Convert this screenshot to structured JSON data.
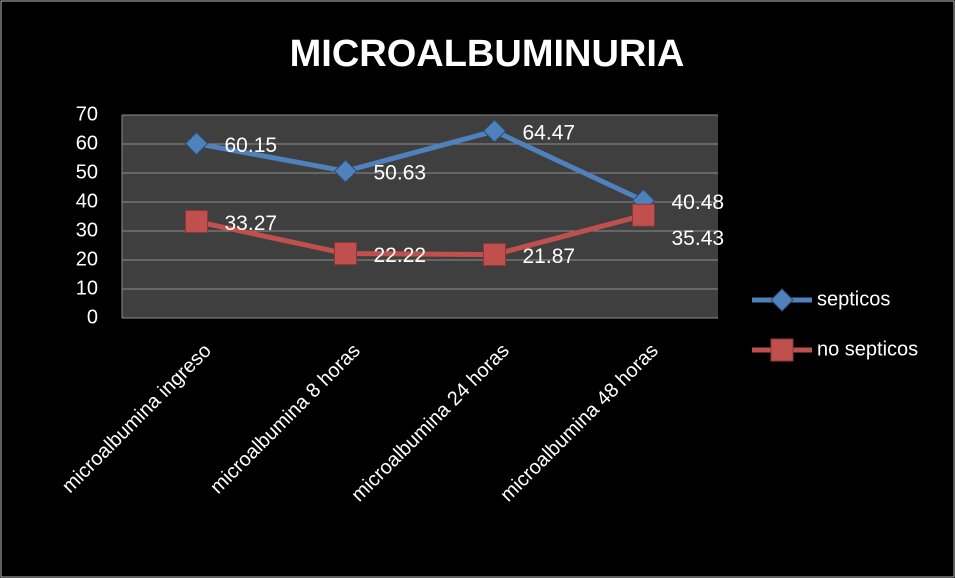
{
  "chart_data": {
    "type": "line",
    "title": "MICROALBUMINURIA",
    "categories": [
      "microalbumina ingreso",
      "microalbumina 8 horas",
      "microalbumina 24 horas",
      "microalbumina 48 horas"
    ],
    "series": [
      {
        "name": "septicos",
        "color": "#4f81bd",
        "marker": "diamond",
        "values": [
          60.15,
          50.63,
          64.47,
          40.48
        ]
      },
      {
        "name": "no septicos",
        "color": "#c0504d",
        "marker": "square",
        "values": [
          33.27,
          22.22,
          21.87,
          35.43
        ]
      }
    ],
    "ylim": [
      0,
      70
    ],
    "yticks": [
      0,
      10,
      20,
      30,
      40,
      50,
      60,
      70
    ],
    "grid": true,
    "legend": "right"
  }
}
